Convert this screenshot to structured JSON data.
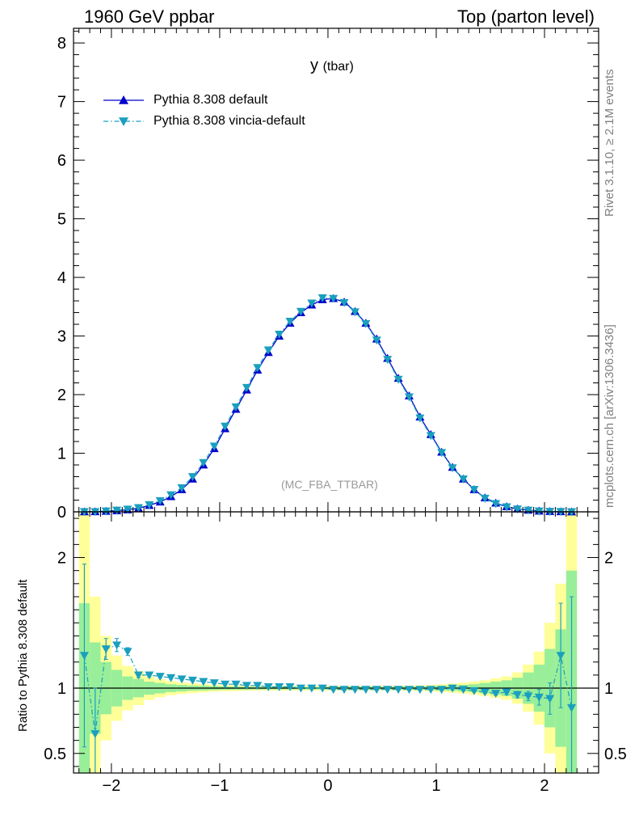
{
  "header": {
    "left": "1960 GeV ppbar",
    "right": "Top (parton level)"
  },
  "side_labels": {
    "rivet": "Rivet 3.1.10, ≥ 2.1M events",
    "mcplots": "mcplots.cern.ch [arXiv:1306.3436]"
  },
  "chart_data": [
    {
      "type": "line",
      "title": "y",
      "title_suffix": "(tbar)",
      "analysis_label": "(MC_FBA_TTBAR)",
      "xlim": [
        -2.35,
        2.5
      ],
      "ylim": [
        0,
        8.25
      ],
      "yticks": [
        0,
        1,
        2,
        3,
        4,
        5,
        6,
        7,
        8
      ],
      "xticks": [
        -2,
        -1,
        0,
        1,
        2
      ],
      "legend_position": "top-left",
      "series": [
        {
          "name": "Pythia 8.308 default",
          "color": "#0000cc",
          "marker": "triangle-up",
          "line": "solid",
          "x": [
            -2.25,
            -2.15,
            -2.05,
            -1.95,
            -1.85,
            -1.75,
            -1.65,
            -1.55,
            -1.45,
            -1.35,
            -1.25,
            -1.15,
            -1.05,
            -0.95,
            -0.85,
            -0.75,
            -0.65,
            -0.55,
            -0.45,
            -0.35,
            -0.25,
            -0.15,
            -0.05,
            0.05,
            0.15,
            0.25,
            0.35,
            0.45,
            0.55,
            0.65,
            0.75,
            0.85,
            0.95,
            1.05,
            1.15,
            1.25,
            1.35,
            1.45,
            1.55,
            1.65,
            1.75,
            1.85,
            1.95,
            2.05,
            2.15,
            2.25
          ],
          "y": [
            0.002,
            0.004,
            0.01,
            0.02,
            0.035,
            0.06,
            0.11,
            0.17,
            0.26,
            0.38,
            0.56,
            0.8,
            1.08,
            1.42,
            1.75,
            2.08,
            2.42,
            2.72,
            3.0,
            3.22,
            3.4,
            3.53,
            3.62,
            3.64,
            3.58,
            3.42,
            3.22,
            2.95,
            2.62,
            2.28,
            1.98,
            1.62,
            1.32,
            1.02,
            0.76,
            0.56,
            0.38,
            0.24,
            0.15,
            0.09,
            0.05,
            0.03,
            0.015,
            0.007,
            0.003,
            0.001
          ]
        },
        {
          "name": "Pythia 8.308 vincia-default",
          "color": "#1a9fbf",
          "marker": "triangle-down",
          "line": "dash-dot",
          "x": [
            -2.25,
            -2.15,
            -2.05,
            -1.95,
            -1.85,
            -1.75,
            -1.65,
            -1.55,
            -1.45,
            -1.35,
            -1.25,
            -1.15,
            -1.05,
            -0.95,
            -0.85,
            -0.75,
            -0.65,
            -0.55,
            -0.45,
            -0.35,
            -0.25,
            -0.15,
            -0.05,
            0.05,
            0.15,
            0.25,
            0.35,
            0.45,
            0.55,
            0.65,
            0.75,
            0.85,
            0.95,
            1.05,
            1.15,
            1.25,
            1.35,
            1.45,
            1.55,
            1.65,
            1.75,
            1.85,
            1.95,
            2.05,
            2.15,
            2.25
          ],
          "y": [
            0.003,
            0.003,
            0.013,
            0.027,
            0.045,
            0.07,
            0.12,
            0.19,
            0.29,
            0.41,
            0.6,
            0.84,
            1.12,
            1.46,
            1.79,
            2.12,
            2.46,
            2.76,
            3.03,
            3.25,
            3.42,
            3.56,
            3.65,
            3.64,
            3.57,
            3.41,
            3.21,
            2.93,
            2.6,
            2.26,
            1.96,
            1.6,
            1.3,
            1.01,
            0.75,
            0.56,
            0.38,
            0.23,
            0.14,
            0.085,
            0.048,
            0.028,
            0.014,
            0.006,
            0.004,
            0.001
          ]
        }
      ]
    },
    {
      "type": "line",
      "ylabel": "Ratio to Pythia 8.308 default",
      "xlim": [
        -2.35,
        2.5
      ],
      "ylim": [
        0.35,
        2.35
      ],
      "yticks": [
        0.5,
        1,
        2
      ],
      "xticks": [
        -2,
        -1,
        0,
        1,
        2
      ],
      "band_colors": {
        "inner": "#99ee99",
        "outer": "#ffff99"
      },
      "reference": {
        "name": "Pythia 8.308 default",
        "value": 1.0
      },
      "bands": {
        "x": [
          -2.25,
          -2.15,
          -2.05,
          -1.95,
          -1.85,
          -1.75,
          -1.65,
          -1.55,
          -1.45,
          -1.35,
          -1.25,
          -1.15,
          -1.05,
          -0.95,
          -0.85,
          -0.75,
          -0.65,
          -0.55,
          -0.45,
          -0.35,
          -0.25,
          -0.15,
          -0.05,
          0.05,
          0.15,
          0.25,
          0.35,
          0.45,
          0.55,
          0.65,
          0.75,
          0.85,
          0.95,
          1.05,
          1.15,
          1.25,
          1.35,
          1.45,
          1.55,
          1.65,
          1.75,
          1.85,
          1.95,
          2.05,
          2.15,
          2.25
        ],
        "inner_halfwidth": [
          0.65,
          0.35,
          0.2,
          0.14,
          0.09,
          0.07,
          0.05,
          0.04,
          0.03,
          0.025,
          0.02,
          0.018,
          0.015,
          0.013,
          0.012,
          0.011,
          0.01,
          0.01,
          0.01,
          0.01,
          0.01,
          0.01,
          0.01,
          0.01,
          0.01,
          0.01,
          0.01,
          0.01,
          0.01,
          0.011,
          0.012,
          0.013,
          0.015,
          0.018,
          0.02,
          0.025,
          0.03,
          0.04,
          0.05,
          0.06,
          0.08,
          0.12,
          0.18,
          0.3,
          0.45,
          0.9
        ],
        "outer_halfwidth": [
          1.4,
          0.7,
          0.4,
          0.25,
          0.17,
          0.13,
          0.09,
          0.07,
          0.055,
          0.045,
          0.038,
          0.032,
          0.027,
          0.024,
          0.022,
          0.02,
          0.019,
          0.018,
          0.018,
          0.018,
          0.018,
          0.018,
          0.018,
          0.018,
          0.018,
          0.018,
          0.018,
          0.018,
          0.018,
          0.019,
          0.02,
          0.022,
          0.025,
          0.03,
          0.035,
          0.042,
          0.05,
          0.06,
          0.075,
          0.09,
          0.12,
          0.18,
          0.28,
          0.5,
          0.8,
          1.4
        ]
      },
      "series": [
        {
          "name": "Pythia 8.308 vincia-default",
          "color": "#1a9fbf",
          "marker": "triangle-down",
          "line": "dash-dot",
          "x": [
            -2.25,
            -2.15,
            -2.05,
            -1.95,
            -1.85,
            -1.75,
            -1.65,
            -1.55,
            -1.45,
            -1.35,
            -1.25,
            -1.15,
            -1.05,
            -0.95,
            -0.85,
            -0.75,
            -0.65,
            -0.55,
            -0.45,
            -0.35,
            -0.25,
            -0.15,
            -0.05,
            0.05,
            0.15,
            0.25,
            0.35,
            0.45,
            0.55,
            0.65,
            0.75,
            0.85,
            0.95,
            1.05,
            1.15,
            1.25,
            1.35,
            1.45,
            1.55,
            1.65,
            1.75,
            1.85,
            1.95,
            2.05,
            2.15,
            2.25
          ],
          "y": [
            1.25,
            0.65,
            1.3,
            1.33,
            1.28,
            1.1,
            1.1,
            1.09,
            1.08,
            1.07,
            1.06,
            1.05,
            1.04,
            1.03,
            1.03,
            1.02,
            1.02,
            1.01,
            1.01,
            1.01,
            1.0,
            1.0,
            1.0,
            0.99,
            0.99,
            0.99,
            0.99,
            0.99,
            0.99,
            0.99,
            0.99,
            0.99,
            0.99,
            0.99,
            1.0,
            0.99,
            0.98,
            0.97,
            0.96,
            0.97,
            0.95,
            0.94,
            0.93,
            0.92,
            1.25,
            0.85
          ],
          "err": [
            0.7,
            0.35,
            0.08,
            0.05,
            0.03,
            0.02,
            0.015,
            0.012,
            0.01,
            0.008,
            0.007,
            0.006,
            0.005,
            0.005,
            0.005,
            0.005,
            0.005,
            0.005,
            0.005,
            0.005,
            0.005,
            0.005,
            0.005,
            0.005,
            0.005,
            0.005,
            0.005,
            0.005,
            0.005,
            0.005,
            0.005,
            0.005,
            0.005,
            0.006,
            0.007,
            0.008,
            0.01,
            0.012,
            0.015,
            0.02,
            0.025,
            0.035,
            0.06,
            0.12,
            0.4,
            0.85
          ]
        }
      ]
    }
  ]
}
